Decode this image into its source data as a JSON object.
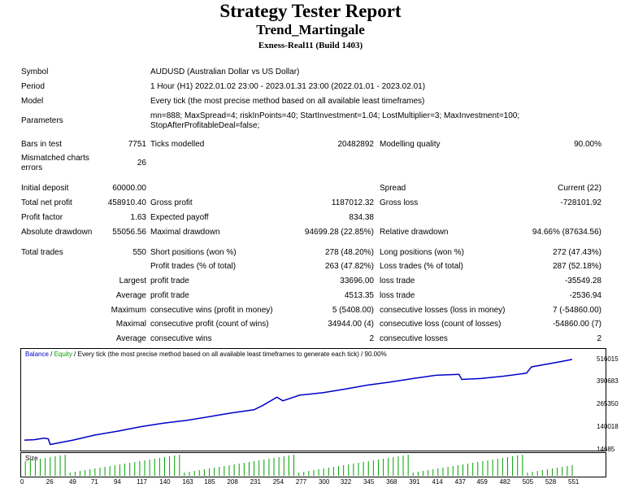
{
  "header": {
    "title": "Strategy Tester Report",
    "subtitle": "Trend_Martingale",
    "server": "Exness-Real11 (Build 1403)"
  },
  "info": {
    "symbol_label": "Symbol",
    "symbol_value": "AUDUSD (Australian Dollar vs US Dollar)",
    "period_label": "Period",
    "period_value": "1 Hour (H1) 2022.01.02 23:00 - 2023.01.31 23:00 (2022.01.01 - 2023.02.01)",
    "model_label": "Model",
    "model_value": "Every tick (the most precise method based on all available least timeframes)",
    "params_label": "Parameters",
    "params_line1": "mn=888; MaxSpread=4; riskInPoints=40; StartInvestment=1.04; LostMultiplier=3; MaxInvestment=100;",
    "params_line2": "StopAfterProfitableDeal=false;"
  },
  "stats": {
    "bars_label": "Bars in test",
    "bars_value": "7751",
    "ticks_label": "Ticks modelled",
    "ticks_value": "20482892",
    "quality_label": "Modelling quality",
    "quality_value": "90.00%",
    "mismatch_label1": "Mismatched charts",
    "mismatch_label2": "errors",
    "mismatch_value": "26",
    "deposit_label": "Initial deposit",
    "deposit_value": "60000.00",
    "spread_label": "Spread",
    "spread_value": "Current (22)",
    "netprofit_label": "Total net profit",
    "netprofit_value": "458910.40",
    "grossprofit_label": "Gross profit",
    "grossprofit_value": "1187012.32",
    "grossloss_label": "Gross loss",
    "grossloss_value": "-728101.92",
    "pf_label": "Profit factor",
    "pf_value": "1.63",
    "ep_label": "Expected payoff",
    "ep_value": "834.38",
    "absdd_label": "Absolute drawdown",
    "absdd_value": "55056.56",
    "maxdd_label": "Maximal drawdown",
    "maxdd_value": "94699.28 (22.85%)",
    "reldd_label": "Relative drawdown",
    "reldd_value": "94.66% (87634.56)",
    "trades_label": "Total trades",
    "trades_value": "550",
    "short_label": "Short positions (won %)",
    "short_value": "278 (48.20%)",
    "long_label": "Long positions (won %)",
    "long_value": "272 (47.43%)",
    "pt_label": "Profit trades (% of total)",
    "pt_value": "263 (47.82%)",
    "lt_label": "Loss trades (% of total)",
    "lt_value": "287 (52.18%)",
    "largest_label": "Largest",
    "largest_profit_label": "profit trade",
    "largest_profit_value": "33696.00",
    "largest_loss_label": "loss trade",
    "largest_loss_value": "-35549.28",
    "average_label": "Average",
    "avg_profit_label": "profit trade",
    "avg_profit_value": "4513.35",
    "avg_loss_label": "loss trade",
    "avg_loss_value": "-2536.94",
    "maximum_label": "Maximum",
    "max_wins_label": "consecutive wins (profit in money)",
    "max_wins_value": "5 (5408.00)",
    "max_losses_label": "consecutive losses (loss in money)",
    "max_losses_value": "7 (-54860.00)",
    "maximal_label": "Maximal",
    "maximal_profit_label": "consecutive profit (count of wins)",
    "maximal_profit_value": "34944.00 (4)",
    "maximal_loss_label": "consecutive loss (count of losses)",
    "maximal_loss_value": "-54860.00 (7)",
    "average2_label": "Average",
    "avg_wins_label": "consecutive wins",
    "avg_wins_value": "2",
    "avg_losses_label": "consecutive losses",
    "avg_losses_value": "2"
  },
  "chart_data": {
    "type": "line",
    "legend": {
      "balance": "Balance",
      "sep": " / ",
      "equity": "Equity",
      "desc": " / Every tick (the most precise method based on all available least timeframes to generate each tick) / 90.00%"
    },
    "yticks": [
      "516015",
      "390683",
      "265350",
      "140018",
      "14685"
    ],
    "ylim": [
      14685,
      516015
    ],
    "xticks": [
      "0",
      "26",
      "49",
      "71",
      "94",
      "117",
      "140",
      "163",
      "185",
      "208",
      "231",
      "254",
      "277",
      "300",
      "322",
      "345",
      "368",
      "391",
      "414",
      "437",
      "459",
      "482",
      "505",
      "528",
      "551"
    ],
    "size_label": "Size",
    "colors": {
      "balance": "#0000c8",
      "equity": "#00a000",
      "size": "#00a000"
    },
    "balance": [
      [
        0,
        60000
      ],
      [
        10,
        62000
      ],
      [
        20,
        71000
      ],
      [
        24,
        66000
      ],
      [
        26,
        35000
      ],
      [
        49,
        60000
      ],
      [
        71,
        88000
      ],
      [
        94,
        110000
      ],
      [
        117,
        135000
      ],
      [
        140,
        155000
      ],
      [
        163,
        170000
      ],
      [
        185,
        190000
      ],
      [
        208,
        212000
      ],
      [
        231,
        230000
      ],
      [
        240,
        255000
      ],
      [
        254,
        300000
      ],
      [
        260,
        280000
      ],
      [
        277,
        312000
      ],
      [
        300,
        325000
      ],
      [
        322,
        345000
      ],
      [
        345,
        368000
      ],
      [
        368,
        385000
      ],
      [
        391,
        405000
      ],
      [
        414,
        423000
      ],
      [
        437,
        428000
      ],
      [
        440,
        400000
      ],
      [
        459,
        405000
      ],
      [
        482,
        418000
      ],
      [
        505,
        435000
      ],
      [
        510,
        470000
      ],
      [
        528,
        488000
      ],
      [
        540,
        500000
      ],
      [
        551,
        512000
      ]
    ]
  }
}
